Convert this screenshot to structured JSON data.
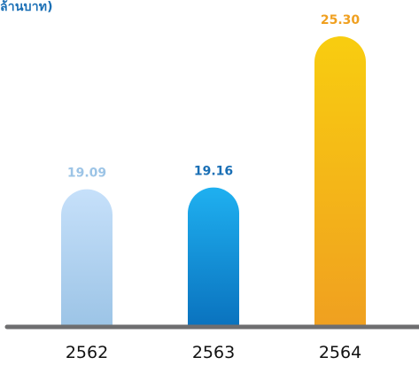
{
  "chart_data": {
    "type": "bar",
    "title": "",
    "unit_label": "ล้านบาท)",
    "xlabel": "",
    "ylabel": "",
    "categories": [
      "2562",
      "2563",
      "2564"
    ],
    "values": [
      19.09,
      19.16,
      25.3
    ],
    "value_labels": [
      "19.09",
      "19.16",
      "25.30"
    ],
    "ylim": [
      0,
      25.3
    ],
    "grid": false,
    "legend": "none",
    "bar_colors": [
      {
        "top": "#c6e0fa",
        "bottom": "#9cc4e6",
        "label": "#9cc4e6"
      },
      {
        "top": "#1fb0f0",
        "bottom": "#0a72be",
        "label": "#1a6fb5"
      },
      {
        "top": "#f8cd10",
        "bottom": "#f0a020",
        "label": "#f0a020"
      }
    ],
    "axis_color": "#6e6e70",
    "tick_color": "#111111"
  }
}
